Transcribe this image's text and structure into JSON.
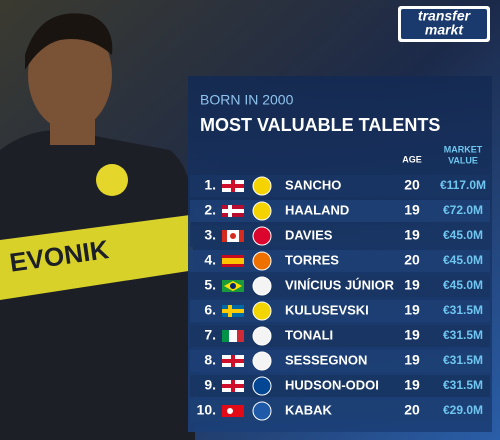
{
  "logo": {
    "line1": "transfer",
    "line2": "markt"
  },
  "header": {
    "subtitle": "BORN IN 2000",
    "title": "MOST VALUABLE TALENTS"
  },
  "table": {
    "columns": {
      "age": "AGE",
      "value_line1": "MARKET",
      "value_line2": "VALUE"
    },
    "rows": [
      {
        "rank": "1.",
        "name": "SANCHO",
        "age": 20,
        "value": "€117.0M"
      },
      {
        "rank": "2.",
        "name": "HAALAND",
        "age": 19,
        "value": "€72.0M"
      },
      {
        "rank": "3.",
        "name": "DAVIES",
        "age": 19,
        "value": "€45.0M"
      },
      {
        "rank": "4.",
        "name": "TORRES",
        "age": 20,
        "value": "€45.0M"
      },
      {
        "rank": "5.",
        "name": "VINÍCIUS JÚNIOR",
        "age": 19,
        "value": "€45.0M"
      },
      {
        "rank": "6.",
        "name": "KULUSEVSKI",
        "age": 19,
        "value": "€31.5M"
      },
      {
        "rank": "7.",
        "name": "TONALI",
        "age": 19,
        "value": "€31.5M"
      },
      {
        "rank": "8.",
        "name": "SESSEGNON",
        "age": 19,
        "value": "€31.5M"
      },
      {
        "rank": "9.",
        "name": "HUDSON-ODOI",
        "age": 19,
        "value": "€31.5M"
      },
      {
        "rank": "10.",
        "name": "KABAK",
        "age": 20,
        "value": "€29.0M"
      }
    ]
  }
}
